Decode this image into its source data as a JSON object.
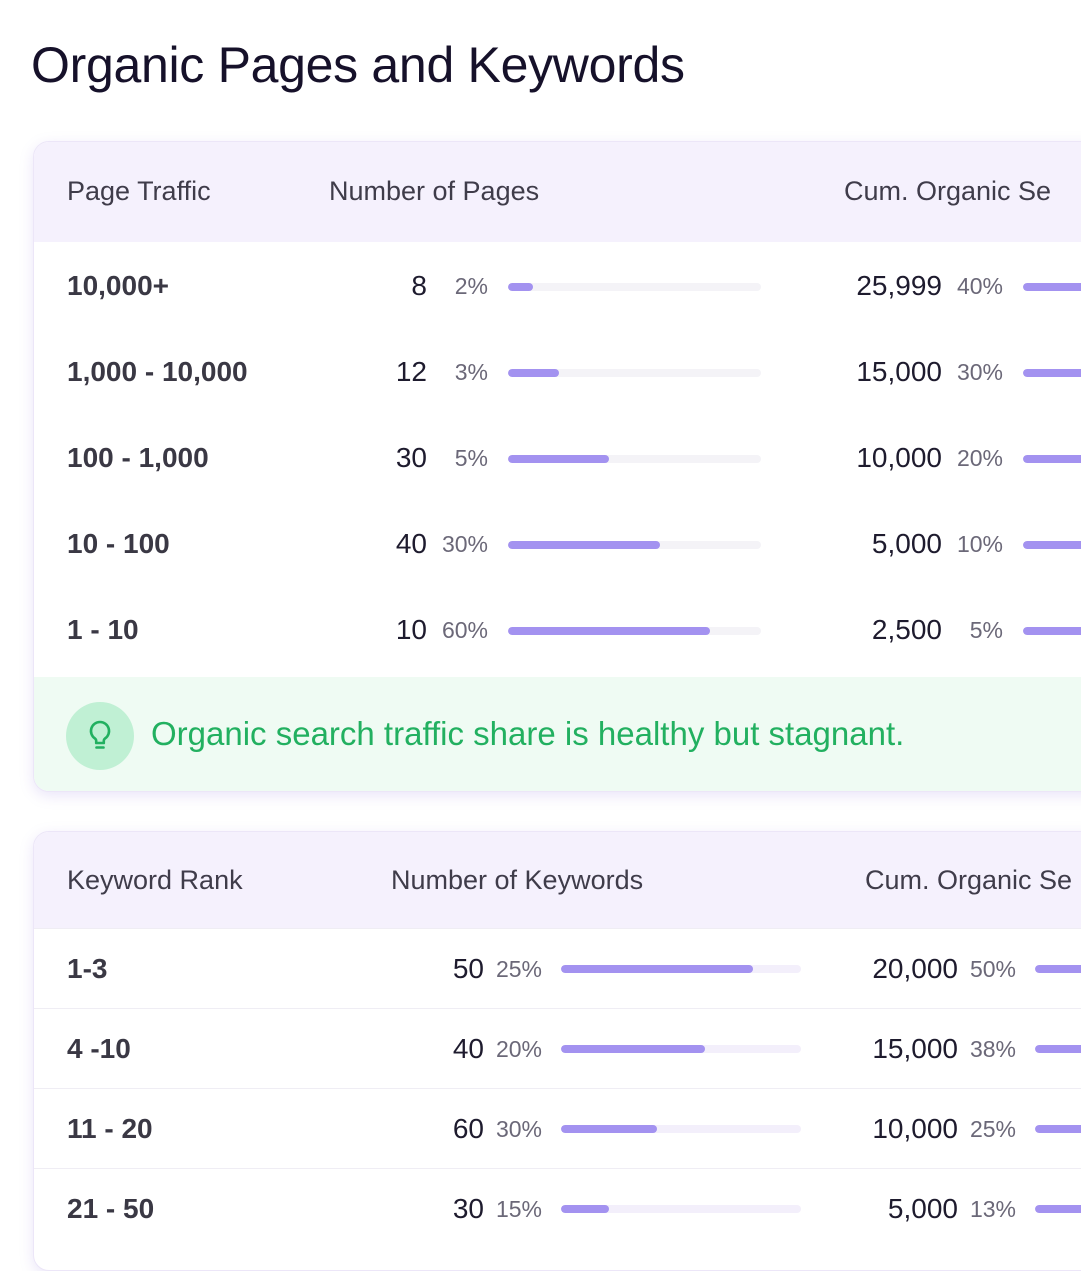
{
  "page": {
    "title": "Organic Pages and Keywords"
  },
  "pages_table": {
    "headers": {
      "traffic": "Page Traffic",
      "count": "Number of Pages",
      "cum": "Cum. Organic Se"
    },
    "rows": [
      {
        "label": "10,000+",
        "count": "8",
        "count_pct": "2%",
        "count_fill": 0.1,
        "cum": "25,999",
        "cum_pct": "40%",
        "cum_fill": 0.4
      },
      {
        "label": "1,000 - 10,000",
        "count": "12",
        "count_pct": "3%",
        "count_fill": 0.2,
        "cum": "15,000",
        "cum_pct": "30%",
        "cum_fill": 0.85
      },
      {
        "label": "100 - 1,000",
        "count": "30",
        "count_pct": "5%",
        "count_fill": 0.4,
        "cum": "10,000",
        "cum_pct": "20%",
        "cum_fill": 1.0
      },
      {
        "label": "10 - 100",
        "count": "40",
        "count_pct": "30%",
        "count_fill": 0.6,
        "cum": "5,000",
        "cum_pct": "10%",
        "cum_fill": 1.0
      },
      {
        "label": "1 - 10",
        "count": "10",
        "count_pct": "60%",
        "count_fill": 0.8,
        "cum": "2,500",
        "cum_pct": "5%",
        "cum_fill": 1.0
      }
    ],
    "insight": {
      "icon": "lightbulb-icon",
      "text": "Organic search traffic share is healthy but stagnant."
    }
  },
  "keywords_table": {
    "headers": {
      "rank": "Keyword Rank",
      "count": "Number of Keywords",
      "cum": "Cum. Organic Se"
    },
    "rows": [
      {
        "label": "1-3",
        "count": "50",
        "count_pct": "25%",
        "count_fill": 0.8,
        "cum": "20,000",
        "cum_pct": "50%",
        "cum_fill": 1.0
      },
      {
        "label": "4 -10",
        "count": "40",
        "count_pct": "20%",
        "count_fill": 0.6,
        "cum": "15,000",
        "cum_pct": "38%",
        "cum_fill": 1.0
      },
      {
        "label": "11 - 20",
        "count": "60",
        "count_pct": "30%",
        "count_fill": 0.4,
        "cum": "10,000",
        "cum_pct": "25%",
        "cum_fill": 1.0
      },
      {
        "label": "21 - 50",
        "count": "30",
        "count_pct": "15%",
        "count_fill": 0.2,
        "cum": "5,000",
        "cum_pct": "13%",
        "cum_fill": 1.0
      }
    ]
  },
  "colors": {
    "bar_fill": "#a392f0",
    "insight_text": "#22b060",
    "header_bg": "#f5f1fd"
  }
}
